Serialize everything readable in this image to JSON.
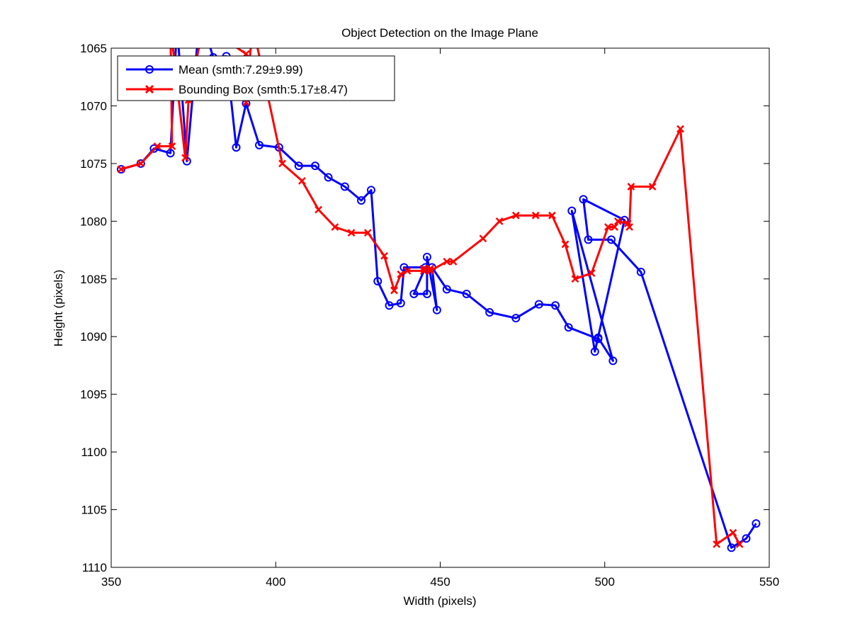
{
  "chart_data": {
    "type": "line",
    "title": "Object Detection on the Image Plane",
    "xlabel": "Width (pixels)",
    "ylabel": "Height (pixels)",
    "xlim": [
      350,
      550
    ],
    "ylim": [
      1065,
      1110
    ],
    "y_reversed": true,
    "grid": false,
    "legend_position": "top-left",
    "x_ticks": [
      "350",
      "400",
      "450",
      "500",
      "550"
    ],
    "y_ticks": [
      "1065",
      "1070",
      "1075",
      "1080",
      "1085",
      "1090",
      "1095",
      "1100",
      "1105",
      "1110"
    ],
    "series": [
      {
        "name": "Mean (smth:7.29±9.99)",
        "color": "#0000ff",
        "marker": "circle",
        "points": [
          [
            353,
            1075.5
          ],
          [
            359,
            1075
          ],
          [
            363,
            1073.7
          ],
          [
            368,
            1074.1
          ],
          [
            370,
            1063
          ],
          [
            373,
            1074.8
          ],
          [
            377,
            1062
          ],
          [
            381,
            1065.8
          ],
          [
            385,
            1065.7
          ],
          [
            388,
            1073.6
          ],
          [
            391,
            1069.8
          ],
          [
            395,
            1073.4
          ],
          [
            401,
            1073.6
          ],
          [
            407,
            1075.2
          ],
          [
            412,
            1075.2
          ],
          [
            416,
            1076.2
          ],
          [
            421,
            1077
          ],
          [
            426,
            1078.2
          ],
          [
            429,
            1077.3
          ],
          [
            431,
            1085.2
          ],
          [
            434.5,
            1087.3
          ],
          [
            438,
            1087.1
          ],
          [
            439,
            1084
          ],
          [
            445.5,
            1084
          ],
          [
            442,
            1086.3
          ],
          [
            446,
            1086.3
          ],
          [
            446,
            1083.1
          ],
          [
            449,
            1087.7
          ],
          [
            447.5,
            1084
          ],
          [
            452,
            1085.9
          ],
          [
            458,
            1086.3
          ],
          [
            465,
            1087.9
          ],
          [
            473,
            1088.4
          ],
          [
            480,
            1087.2
          ],
          [
            485,
            1087.3
          ],
          [
            489,
            1089.2
          ],
          [
            498,
            1090.2
          ],
          [
            498,
            1090.1
          ],
          [
            502.5,
            1092.1
          ],
          [
            490,
            1079.1
          ],
          [
            497,
            1091.3
          ],
          [
            506,
            1079.9
          ],
          [
            493.5,
            1078.1
          ],
          [
            495,
            1081.6
          ],
          [
            502,
            1081.6
          ],
          [
            511,
            1084.4
          ],
          [
            538.5,
            1108.3
          ],
          [
            543,
            1107.5
          ],
          [
            546,
            1106.2
          ]
        ]
      },
      {
        "name": "Bounding Box (smth:5.17±8.47)",
        "color": "#ff0000",
        "marker": "x",
        "points": [
          [
            353,
            1075.5
          ],
          [
            359,
            1075
          ],
          [
            364,
            1073.5
          ],
          [
            368.5,
            1073.5
          ],
          [
            368,
            1063
          ],
          [
            372.5,
            1074.5
          ],
          [
            373.5,
            1069.5
          ],
          [
            378,
            1063
          ],
          [
            391,
            1065.5
          ],
          [
            391,
            1069.7
          ],
          [
            393,
            1063
          ],
          [
            402,
            1075
          ],
          [
            408,
            1076.5
          ],
          [
            413,
            1079
          ],
          [
            418,
            1080.5
          ],
          [
            423,
            1081
          ],
          [
            428,
            1081
          ],
          [
            433,
            1083
          ],
          [
            436,
            1086
          ],
          [
            438,
            1084.6
          ],
          [
            440,
            1084.3
          ],
          [
            445,
            1084.3
          ],
          [
            445,
            1084.1
          ],
          [
            447,
            1084.1
          ],
          [
            447,
            1084.3
          ],
          [
            452,
            1083.5
          ],
          [
            454,
            1083.5
          ],
          [
            463,
            1081.5
          ],
          [
            468,
            1080
          ],
          [
            473,
            1079.5
          ],
          [
            479,
            1079.5
          ],
          [
            484,
            1079.5
          ],
          [
            488,
            1082
          ],
          [
            491,
            1085
          ],
          [
            496,
            1084.5
          ],
          [
            501,
            1080.5
          ],
          [
            503,
            1080.5
          ],
          [
            504,
            1080
          ],
          [
            507,
            1080.2
          ],
          [
            507.5,
            1080.5
          ],
          [
            508,
            1077
          ],
          [
            514.5,
            1077
          ],
          [
            523,
            1072
          ],
          [
            534,
            1108
          ],
          [
            539,
            1107
          ],
          [
            541,
            1108
          ]
        ]
      }
    ]
  }
}
